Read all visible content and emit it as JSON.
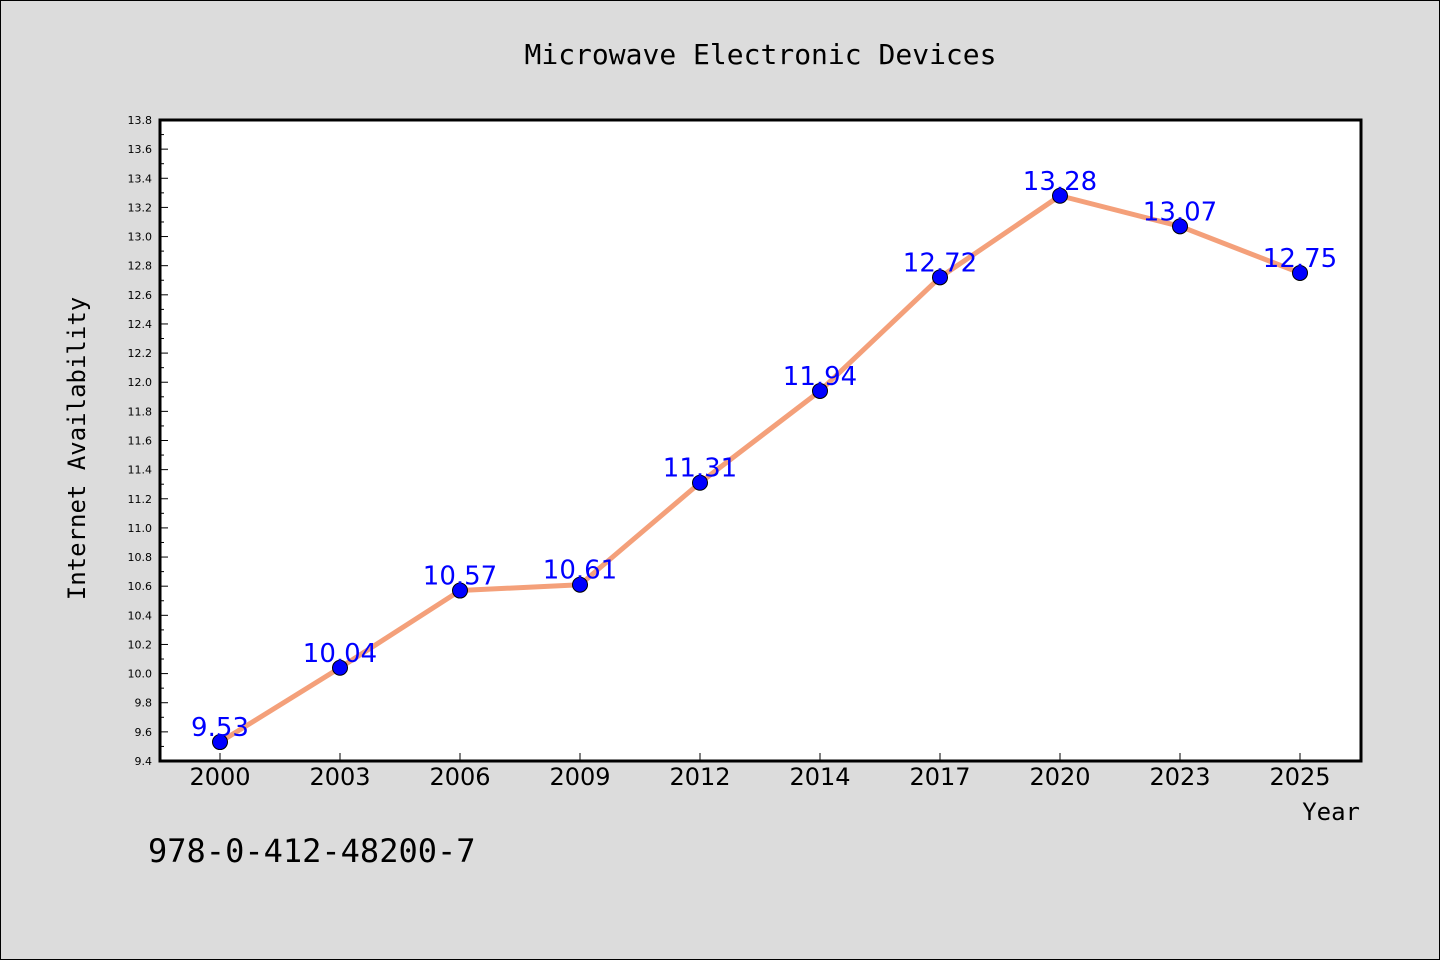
{
  "chart_data": {
    "type": "line",
    "title": "Microwave Electronic Devices",
    "xlabel": "Year",
    "ylabel": "Internet Availability",
    "categories": [
      "2000",
      "2003",
      "2006",
      "2009",
      "2012",
      "2014",
      "2017",
      "2020",
      "2023",
      "2025"
    ],
    "series": [
      {
        "values": [
          9.53,
          10.04,
          10.57,
          10.61,
          11.31,
          11.94,
          12.72,
          13.28,
          13.07,
          12.75
        ],
        "data_labels": [
          "9.53",
          "10.04",
          "10.57",
          "10.61",
          "11.31",
          "11.94",
          "12.72",
          "13.28",
          "13.07",
          "12.75"
        ]
      }
    ],
    "ylim": [
      9.4,
      13.8
    ],
    "yticks": [
      "9.4",
      "9.6",
      "9.8",
      "10.0",
      "10.2",
      "10.4",
      "10.6",
      "10.8",
      "11.0",
      "11.2",
      "11.4",
      "11.6",
      "11.8",
      "12.0",
      "12.2",
      "12.4",
      "12.6",
      "12.8",
      "13.0",
      "13.2",
      "13.4",
      "13.6",
      "13.8"
    ],
    "grid": false,
    "legend": "none",
    "line_color": "#f4a07a",
    "marker_color": "#0000ff",
    "label_color": "#0000ff",
    "background_color": "#dcdcdc",
    "plot_background_color": "#ffffff"
  },
  "footer": {
    "isbn": "978-0-412-48200-7"
  }
}
